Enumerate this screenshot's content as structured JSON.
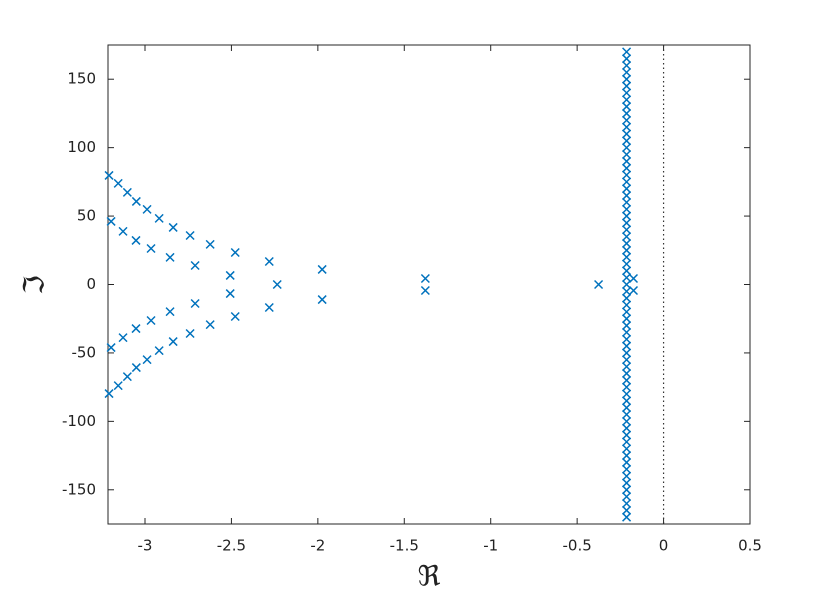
{
  "chart_data": {
    "type": "scatter",
    "xlabel": "ℜ",
    "ylabel": "ℑ",
    "color": "#0072bd",
    "marker": "x",
    "xlim": [
      -3.214,
      0.5
    ],
    "ylim": [
      -175,
      175
    ],
    "xticks": [
      -3,
      -2.5,
      -2,
      -1.5,
      -1,
      -0.5,
      0,
      0.5
    ],
    "yticks": [
      -150,
      -100,
      -50,
      0,
      50,
      100,
      150
    ],
    "vline": 0,
    "x": [
      -3.208,
      -3.155,
      -3.102,
      -3.05,
      -2.988,
      -2.918,
      -2.837,
      -2.739,
      -2.623,
      -2.478,
      -2.281,
      -3.196,
      -3.127,
      -3.052,
      -2.965,
      -2.855,
      -2.71,
      -2.507,
      -1.975,
      -1.378,
      -0.174,
      -3.208,
      -3.155,
      -3.102,
      -3.05,
      -2.988,
      -2.918,
      -2.837,
      -2.739,
      -2.623,
      -2.478,
      -2.281,
      -3.196,
      -3.127,
      -3.052,
      -2.965,
      -2.855,
      -2.71,
      -2.507,
      -1.975,
      -1.378,
      -0.174,
      -2.235,
      -0.376,
      -0.214,
      -0.214,
      -0.214,
      -0.214,
      -0.214,
      -0.214,
      -0.214,
      -0.214,
      -0.214,
      -0.214,
      -0.214,
      -0.214,
      -0.214,
      -0.214,
      -0.214,
      -0.214,
      -0.214,
      -0.214,
      -0.214,
      -0.214,
      -0.214,
      -0.214,
      -0.214,
      -0.214,
      -0.214,
      -0.214,
      -0.214,
      -0.214,
      -0.214,
      -0.214,
      -0.214,
      -0.214,
      -0.214,
      -0.214,
      -0.214,
      -0.214,
      -0.214,
      -0.214,
      -0.214,
      -0.214,
      -0.214,
      -0.214,
      -0.214,
      -0.214,
      -0.214,
      -0.214,
      -0.214,
      -0.214,
      -0.214,
      -0.214,
      -0.214,
      -0.214,
      -0.214,
      -0.214,
      -0.214,
      -0.214,
      -0.214,
      -0.214,
      -0.214,
      -0.214,
      -0.214,
      -0.214,
      -0.214,
      -0.214,
      -0.214,
      -0.214,
      -0.214,
      -0.214,
      -0.214
    ],
    "y": [
      79.7,
      73.9,
      67.3,
      60.7,
      54.9,
      48.3,
      41.7,
      35.8,
      29.3,
      23.4,
      16.8,
      46.1,
      38.8,
      32.2,
      26.3,
      19.8,
      13.9,
      6.6,
      11,
      4.4,
      4.4,
      -79.7,
      -73.9,
      -67.3,
      -60.7,
      -54.9,
      -48.3,
      -41.7,
      -35.8,
      -29.3,
      -23.4,
      -16.8,
      -46.1,
      -38.8,
      -32.2,
      -26.3,
      -19.8,
      -13.9,
      -6.6,
      -11,
      -4.4,
      -4.4,
      0,
      0,
      -170,
      -165,
      -160,
      -155,
      -150,
      -145,
      -140,
      -135,
      -130,
      -125,
      -120,
      -115,
      -110,
      -105,
      -100,
      -95,
      -90,
      -85,
      -80,
      -75,
      -70,
      -65,
      -60,
      -55,
      -50,
      -45,
      -40,
      -35,
      -30,
      -25,
      -20,
      -15,
      -10,
      -5,
      0,
      5,
      10,
      15,
      20,
      25,
      30,
      35,
      40,
      45,
      50,
      55,
      60,
      65,
      70,
      75,
      80,
      85,
      90,
      95,
      100,
      105,
      110,
      115,
      120,
      125,
      130,
      135,
      140,
      145,
      150,
      155,
      160,
      165,
      170
    ]
  }
}
